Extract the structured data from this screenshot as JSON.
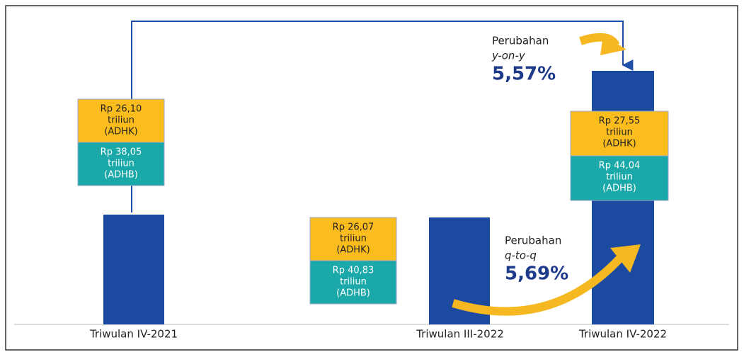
{
  "periods": [
    {
      "label": "Triwulan IV-2021",
      "adhk": [
        "Rp 26,10",
        "triliun",
        "(ADHK)"
      ],
      "adhb": [
        "Rp 38,05",
        "triliun",
        "(ADHB)"
      ]
    },
    {
      "label": "Triwulan III-2022",
      "adhk": [
        "Rp 26,07",
        "triliun",
        "(ADHK)"
      ],
      "adhb": [
        "Rp 40,83",
        "triliun",
        "(ADHB)"
      ]
    },
    {
      "label": "Triwulan IV-2022",
      "adhk": [
        "Rp 27,55",
        "triliun",
        "(ADHK)"
      ],
      "adhb": [
        "Rp 44,04",
        "triliun",
        "(ADHB)"
      ]
    }
  ],
  "changes": [
    {
      "title": "Perubahan",
      "kind": "y-on-y",
      "value": "5,57%"
    },
    {
      "title": "Perubahan",
      "kind": "q-to-q",
      "value": "5,69%"
    }
  ]
}
